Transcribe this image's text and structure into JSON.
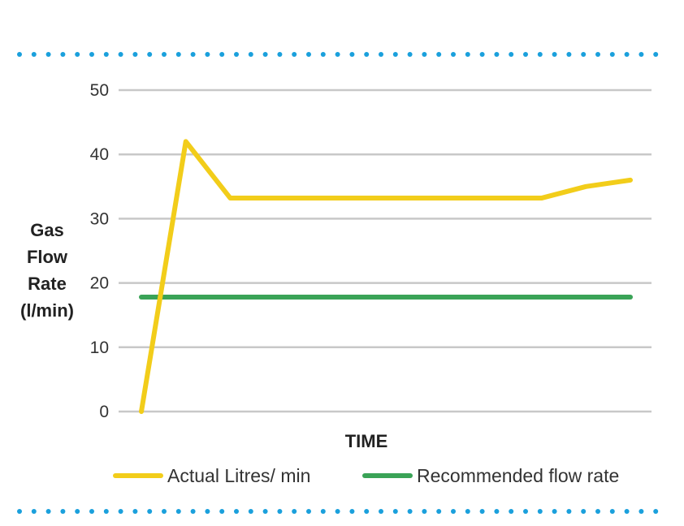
{
  "chart_data": {
    "type": "line",
    "xlabel": "TIME",
    "ylabel_lines": [
      "Gas",
      "Flow",
      "Rate",
      "(l/min)"
    ],
    "ylim": [
      0,
      50
    ],
    "yticks": [
      "0",
      "10",
      "20",
      "30",
      "40",
      "50"
    ],
    "grid": true,
    "legend_placement": "bottom",
    "x": [
      0,
      1,
      2,
      3,
      4,
      5,
      6,
      7,
      8,
      9,
      10,
      11
    ],
    "series": [
      {
        "name": "Actual Litres/ min",
        "color": "#f2cd1a",
        "x": [
          0,
          1,
          2,
          3,
          4,
          5,
          6,
          7,
          8,
          9,
          10,
          11
        ],
        "values": [
          0,
          42,
          33.2,
          33.2,
          33.2,
          33.2,
          33.2,
          33.2,
          33.2,
          33.2,
          35,
          36
        ]
      },
      {
        "name": "Recommended flow rate",
        "color": "#3aa357",
        "x": [
          0,
          11
        ],
        "values": [
          17.8,
          17.8
        ]
      }
    ]
  },
  "decoration": {
    "dot_border_color": "#1aa0dc",
    "grid_color": "#c8c8c8"
  }
}
